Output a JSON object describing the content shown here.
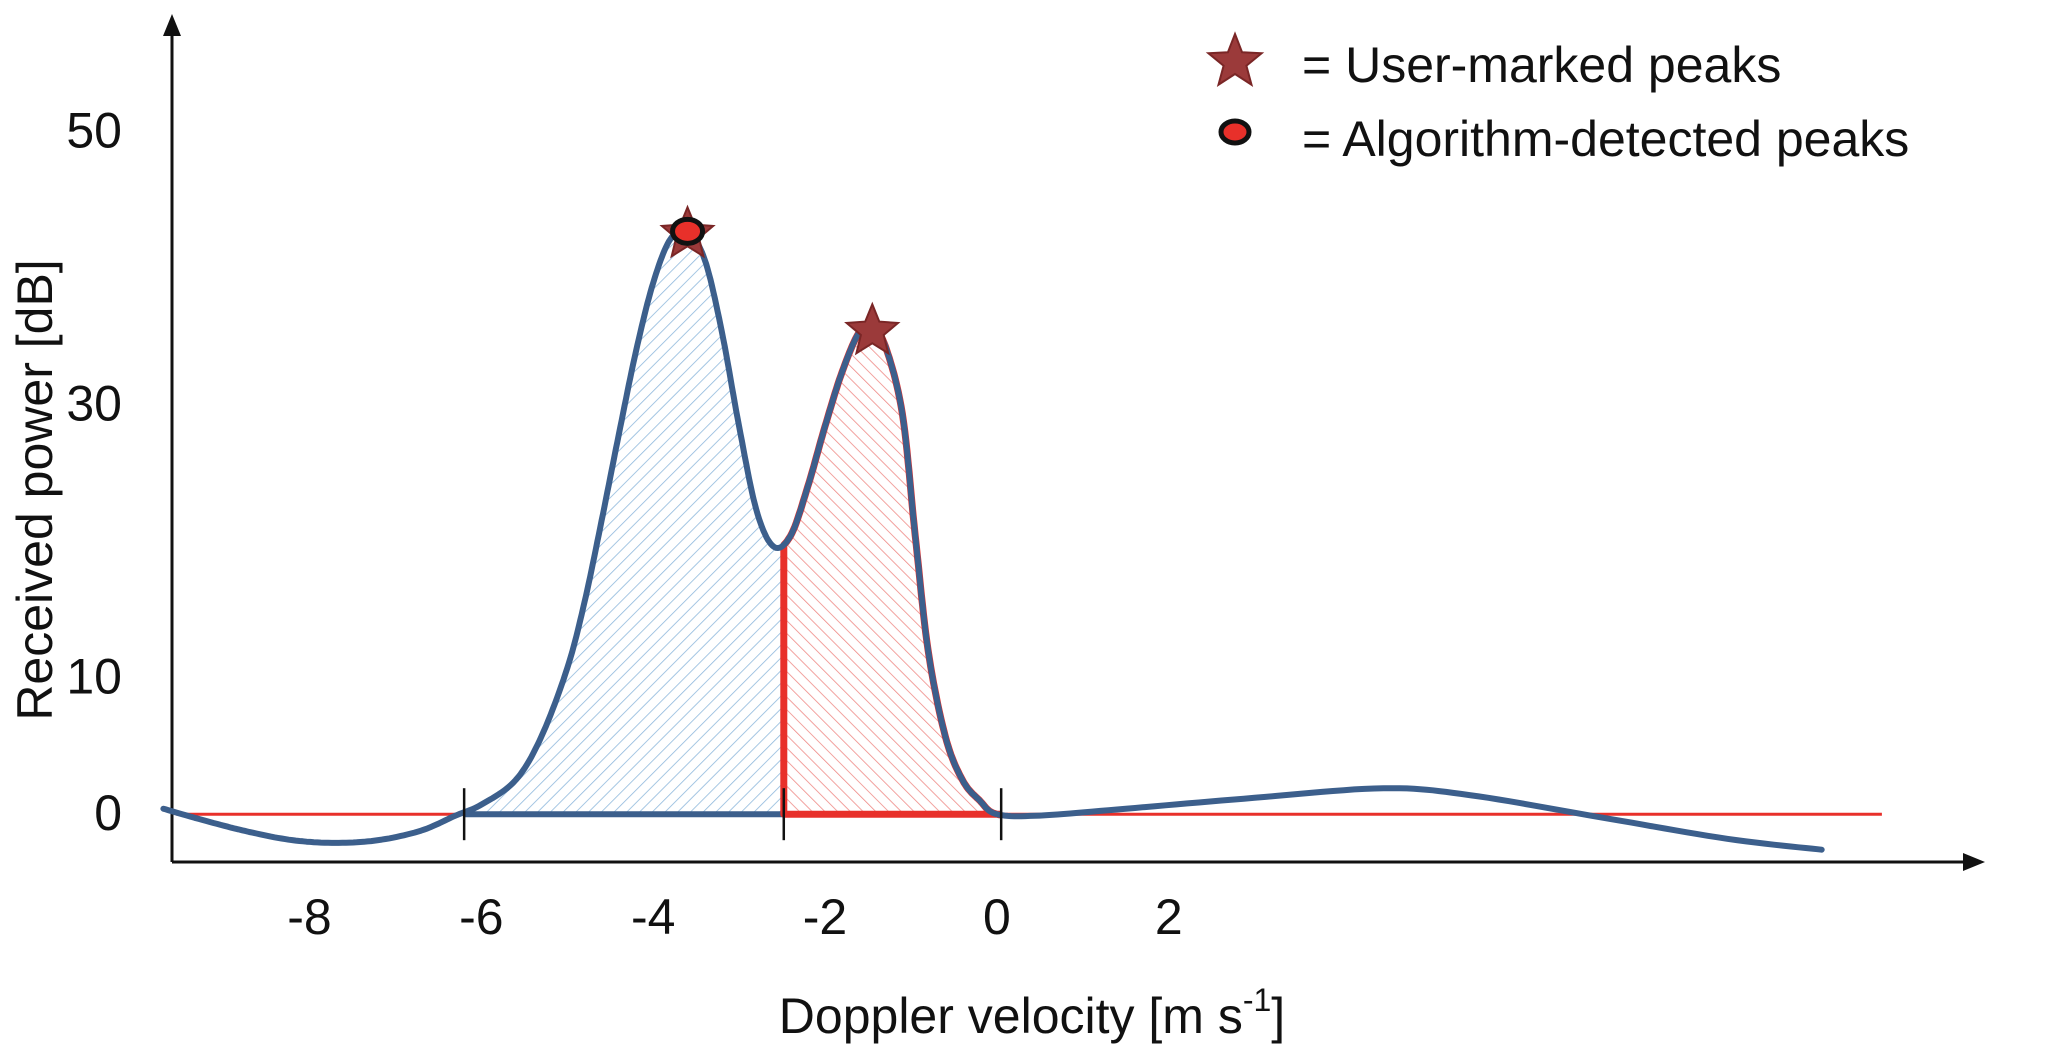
{
  "chart_data": {
    "type": "line",
    "xlabel": "Doppler velocity [m s",
    "xlabel_exp": "-1",
    "xlabel_close": "]",
    "ylabel": "Received power [dB]",
    "xlim": [
      -9.6,
      11.5
    ],
    "ylim": [
      -3.5,
      58
    ],
    "x_ticks": [
      {
        "value": -8,
        "label": "-8"
      },
      {
        "value": -6,
        "label": "-6"
      },
      {
        "value": -4,
        "label": "-4"
      },
      {
        "value": -2,
        "label": "-2"
      },
      {
        "value": 0,
        "label": "0"
      },
      {
        "value": 2,
        "label": "2"
      }
    ],
    "y_ticks": [
      {
        "value": 0,
        "label": "0"
      },
      {
        "value": 10,
        "label": "10"
      },
      {
        "value": 30,
        "label": "30"
      },
      {
        "value": 50,
        "label": "50"
      }
    ],
    "baseline": 0,
    "series": [
      {
        "points": [
          [
            -9.7,
            0.4
          ],
          [
            -9.2,
            -0.5
          ],
          [
            -8.7,
            -1.3
          ],
          [
            -8.2,
            -1.9
          ],
          [
            -7.7,
            -2.1
          ],
          [
            -7.2,
            -1.9
          ],
          [
            -6.7,
            -1.2
          ],
          [
            -6.3,
            -0.1
          ],
          [
            -6.0,
            0.7
          ],
          [
            -5.6,
            2.5
          ],
          [
            -5.3,
            5.7
          ],
          [
            -5.0,
            10.7
          ],
          [
            -4.8,
            15.5
          ],
          [
            -4.6,
            21.5
          ],
          [
            -4.4,
            27.8
          ],
          [
            -4.2,
            33.9
          ],
          [
            -4.0,
            38.9
          ],
          [
            -3.8,
            42.1
          ],
          [
            -3.6,
            42.6
          ],
          [
            -3.4,
            40.6
          ],
          [
            -3.2,
            35.3
          ],
          [
            -3.0,
            28.4
          ],
          [
            -2.8,
            22.3
          ],
          [
            -2.6,
            19.6
          ],
          [
            -2.4,
            20.4
          ],
          [
            -2.2,
            24.0
          ],
          [
            -2.0,
            28.4
          ],
          [
            -1.8,
            32.4
          ],
          [
            -1.6,
            35.3
          ],
          [
            -1.45,
            35.5
          ],
          [
            -1.3,
            34.3
          ],
          [
            -1.1,
            29.3
          ],
          [
            -0.95,
            20.4
          ],
          [
            -0.8,
            12.0
          ],
          [
            -0.6,
            5.7
          ],
          [
            -0.4,
            2.5
          ],
          [
            -0.2,
            1.0
          ],
          [
            0.0,
            0.0
          ],
          [
            0.5,
            -0.1
          ],
          [
            1.5,
            0.4
          ],
          [
            3.0,
            1.2
          ],
          [
            4.5,
            1.9
          ],
          [
            5.5,
            1.4
          ],
          [
            7.0,
            -0.2
          ],
          [
            8.5,
            -1.8
          ],
          [
            9.6,
            -2.6
          ]
        ]
      }
    ],
    "regions": [
      {
        "x_start": -6.2,
        "x_end": -2.48,
        "color": "#6fa8d6"
      },
      {
        "x_start": -2.48,
        "x_end": 0.05,
        "color": "#e8302a"
      }
    ],
    "boundary_ticks_x": [
      -6.2,
      -2.48,
      0.05
    ],
    "user_marked_peaks": [
      [
        -3.6,
        42.6
      ],
      [
        -1.45,
        35.5
      ]
    ],
    "algorithm_detected_peaks": [
      [
        -3.6,
        42.6
      ]
    ],
    "legend": [
      {
        "marker": "star",
        "label": "= User-marked peaks"
      },
      {
        "marker": "dot",
        "label": "= Algorithm-detected peaks"
      }
    ],
    "legend_position": "top-right",
    "colors": {
      "curve": "#3c5f8c",
      "baseline": "#e8302a",
      "highlight": "#e8302a",
      "star": "#9b3a3a",
      "dot_fill": "#e8302a",
      "dot_ring": "#111111"
    }
  }
}
